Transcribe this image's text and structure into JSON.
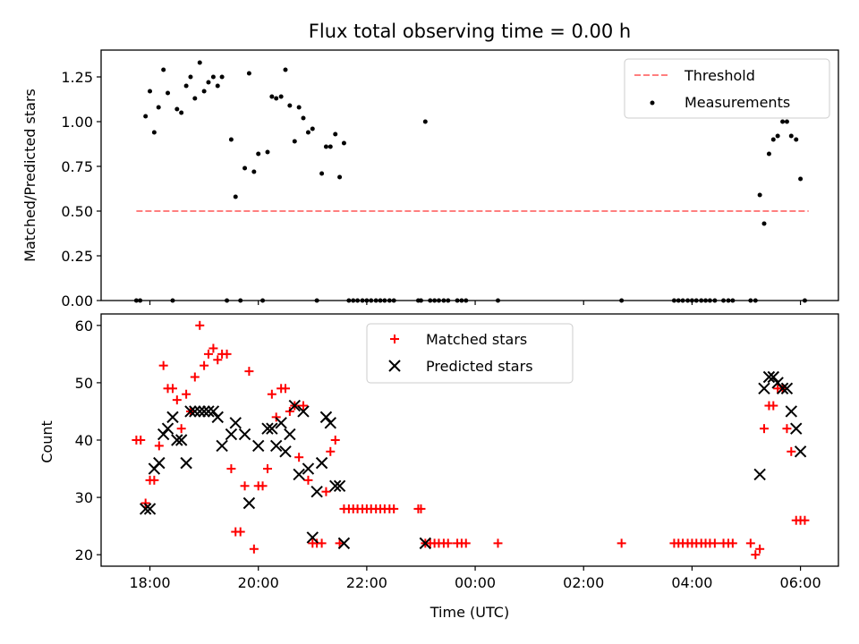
{
  "chart_data": [
    {
      "type": "scatter",
      "panel": "top",
      "title": "Flux total observing time = 0.00 h",
      "xlabel": "",
      "ylabel": "Matched/Predicted stars",
      "xlim": [
        17.1,
        30.7
      ],
      "ylim": [
        0.0,
        1.4
      ],
      "yticks": [
        0.0,
        0.25,
        0.5,
        0.75,
        1.0,
        1.25
      ],
      "ytick_labels": [
        "0.00",
        "0.25",
        "0.50",
        "0.75",
        "1.00",
        "1.25"
      ],
      "xticks": [
        18,
        20,
        22,
        24,
        26,
        28,
        30
      ],
      "xtick_labels": [
        "",
        "",
        "",
        "",
        "",
        "",
        ""
      ],
      "legend": {
        "position": "top-right",
        "threshold_label": "Threshold",
        "measurements_label": "Measurements"
      },
      "threshold": {
        "name": "Threshold",
        "y": 0.5,
        "x": [
          17.75,
          30.15
        ],
        "color": "#ff7f7f"
      },
      "series": [
        {
          "name": "Measurements",
          "color": "#000000",
          "x": [
            17.75,
            17.82,
            17.92,
            18.0,
            18.08,
            18.16,
            18.25,
            18.33,
            18.42,
            18.5,
            18.58,
            18.67,
            18.75,
            18.83,
            18.92,
            19.0,
            19.08,
            19.17,
            19.25,
            19.33,
            19.42,
            19.5,
            19.58,
            19.67,
            19.75,
            19.83,
            19.92,
            20.0,
            20.08,
            20.17,
            20.25,
            20.33,
            20.42,
            20.5,
            20.58,
            20.67,
            20.75,
            20.83,
            20.92,
            21.0,
            21.08,
            21.17,
            21.25,
            21.33,
            21.42,
            21.5,
            21.58,
            21.67,
            21.75,
            21.83,
            21.92,
            22.0,
            22.08,
            22.17,
            22.25,
            22.33,
            22.42,
            22.5,
            22.95,
            23.0,
            23.08,
            23.17,
            23.25,
            23.33,
            23.42,
            23.5,
            23.67,
            23.75,
            23.83,
            24.42,
            26.7,
            27.67,
            27.75,
            27.83,
            27.92,
            28.0,
            28.08,
            28.17,
            28.25,
            28.33,
            28.42,
            28.58,
            28.67,
            28.75,
            29.08,
            29.17,
            29.25,
            29.33,
            29.42,
            29.5,
            29.58,
            29.67,
            29.75,
            29.83,
            29.92,
            30.0,
            30.08
          ],
          "y": [
            0.0,
            0.0,
            1.03,
            1.17,
            0.94,
            1.08,
            1.29,
            1.16,
            0.0,
            1.07,
            1.05,
            1.2,
            1.25,
            1.13,
            1.33,
            1.17,
            1.22,
            1.25,
            1.2,
            1.25,
            0.0,
            0.9,
            0.58,
            0.0,
            0.74,
            1.27,
            0.72,
            0.82,
            0.0,
            0.83,
            1.14,
            1.13,
            1.14,
            1.29,
            1.09,
            0.89,
            1.08,
            1.02,
            0.94,
            0.96,
            0.0,
            0.71,
            0.86,
            0.86,
            0.93,
            0.69,
            0.88,
            0.0,
            0.0,
            0.0,
            0.0,
            0.0,
            0.0,
            0.0,
            0.0,
            0.0,
            0.0,
            0.0,
            0.0,
            0.0,
            1.0,
            0.0,
            0.0,
            0.0,
            0.0,
            0.0,
            0.0,
            0.0,
            0.0,
            0.0,
            0.0,
            0.0,
            0.0,
            0.0,
            0.0,
            0.0,
            0.0,
            0.0,
            0.0,
            0.0,
            0.0,
            0.0,
            0.0,
            0.0,
            0.0,
            0.0,
            0.59,
            0.43,
            0.82,
            0.9,
            0.92,
            1.0,
            1.0,
            0.92,
            0.9,
            0.68,
            0.0
          ]
        }
      ]
    },
    {
      "type": "scatter",
      "panel": "bottom",
      "title": "",
      "xlabel": "Time (UTC)",
      "ylabel": "Count",
      "xlim": [
        17.1,
        30.7
      ],
      "ylim": [
        18.0,
        62.0
      ],
      "yticks": [
        20,
        30,
        40,
        50,
        60
      ],
      "ytick_labels": [
        "20",
        "30",
        "40",
        "50",
        "60"
      ],
      "xticks": [
        18,
        20,
        22,
        24,
        26,
        28,
        30
      ],
      "xtick_labels": [
        "18:00",
        "20:00",
        "22:00",
        "00:00",
        "02:00",
        "04:00",
        "06:00"
      ],
      "legend": {
        "position": "top-center",
        "matched_label": "Matched stars",
        "predicted_label": "Predicted stars"
      },
      "series": [
        {
          "name": "Matched stars",
          "marker": "plus",
          "color": "#ff0000",
          "x": [
            17.75,
            17.83,
            17.92,
            18.0,
            18.08,
            18.17,
            18.25,
            18.33,
            18.42,
            18.5,
            18.58,
            18.67,
            18.75,
            18.83,
            18.92,
            19.0,
            19.08,
            19.17,
            19.25,
            19.33,
            19.42,
            19.5,
            19.58,
            19.67,
            19.75,
            19.83,
            19.92,
            20.0,
            20.08,
            20.17,
            20.25,
            20.33,
            20.42,
            20.5,
            20.58,
            20.67,
            20.75,
            20.83,
            20.92,
            21.0,
            21.08,
            21.17,
            21.25,
            21.33,
            21.42,
            21.5,
            21.58,
            21.67,
            21.75,
            21.83,
            21.92,
            22.0,
            22.08,
            22.17,
            22.25,
            22.33,
            22.42,
            22.5,
            22.95,
            23.0,
            23.08,
            23.17,
            23.25,
            23.33,
            23.42,
            23.5,
            23.67,
            23.75,
            23.83,
            24.42,
            26.7,
            27.67,
            27.75,
            27.83,
            27.92,
            28.0,
            28.08,
            28.17,
            28.25,
            28.33,
            28.42,
            28.58,
            28.67,
            28.75,
            29.08,
            29.17,
            29.25,
            29.33,
            29.42,
            29.5,
            29.58,
            29.67,
            29.75,
            29.83,
            29.92,
            30.0,
            30.08
          ],
          "y": [
            40,
            40,
            29,
            33,
            33,
            39,
            53,
            49,
            49,
            47,
            42,
            48,
            45,
            51,
            60,
            53,
            55,
            56,
            54,
            55,
            55,
            35,
            24,
            24,
            32,
            52,
            21,
            32,
            32,
            35,
            48,
            44,
            49,
            49,
            45,
            46,
            37,
            46,
            33,
            22,
            22,
            22,
            31,
            38,
            40,
            22,
            28,
            28,
            28,
            28,
            28,
            28,
            28,
            28,
            28,
            28,
            28,
            28,
            28,
            28,
            22,
            22,
            22,
            22,
            22,
            22,
            22,
            22,
            22,
            22,
            22,
            22,
            22,
            22,
            22,
            22,
            22,
            22,
            22,
            22,
            22,
            22,
            22,
            22,
            22,
            20,
            21,
            42,
            46,
            46,
            49,
            49,
            42,
            38,
            26,
            26,
            26
          ]
        },
        {
          "name": "Predicted stars",
          "marker": "x",
          "color": "#000000",
          "x": [
            17.92,
            18.0,
            18.08,
            18.17,
            18.25,
            18.33,
            18.42,
            18.5,
            18.58,
            18.67,
            18.75,
            18.83,
            18.92,
            19.0,
            19.08,
            19.17,
            19.25,
            19.33,
            19.5,
            19.58,
            19.75,
            19.83,
            20.0,
            20.17,
            20.25,
            20.33,
            20.42,
            20.5,
            20.58,
            20.67,
            20.75,
            20.83,
            20.92,
            21.0,
            21.08,
            21.17,
            21.25,
            21.33,
            21.42,
            21.5,
            21.58,
            23.08,
            29.25,
            29.33,
            29.42,
            29.5,
            29.58,
            29.67,
            29.75,
            29.83,
            29.92,
            30.0
          ],
          "y": [
            28,
            28,
            35,
            36,
            41,
            42,
            44,
            40,
            40,
            36,
            45,
            45,
            45,
            45,
            45,
            45,
            44,
            39,
            41,
            43,
            41,
            29,
            39,
            42,
            42,
            39,
            43,
            38,
            41,
            46,
            34,
            45,
            35,
            23,
            31,
            36,
            44,
            43,
            32,
            32,
            22,
            22,
            34,
            49,
            51,
            51,
            50,
            49,
            49,
            45,
            42,
            38
          ]
        }
      ]
    }
  ]
}
